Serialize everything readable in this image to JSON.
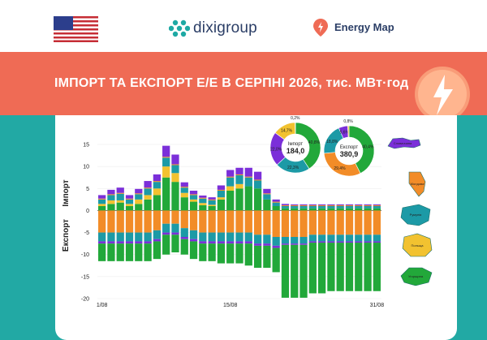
{
  "header": {
    "flag_icon": "us-flag-icon",
    "logo_text": "dixigroup",
    "map_text": "Energy Map"
  },
  "banner": {
    "title": "ІМПОРТ ТА ЕКСПОРТ Е/Е В СЕРПНІ 2026, тис. МВт·год",
    "accent": "#ef6b55"
  },
  "colors": {
    "slovakia": "#7b2fd9",
    "moldova": "#f28c28",
    "romania": "#1c9aa6",
    "poland": "#f2c230",
    "hungary": "#22a83a",
    "background": "#22a9a4"
  },
  "chart_data": {
    "type": "bar",
    "title": "ІМПОРТ ТА ЕКСПОРТ Е/Е В СЕРПНІ 2026, тис. МВт·год",
    "ylabel_top": "Імпорт",
    "ylabel_bottom": "Експорт",
    "ylim": [
      -20,
      15
    ],
    "yticks": [
      15,
      10,
      5,
      0,
      -5,
      -10,
      -15,
      -20
    ],
    "x_labels": [
      "1/08",
      "15/08",
      "31/08"
    ],
    "days": [
      1,
      2,
      3,
      4,
      5,
      6,
      7,
      8,
      9,
      10,
      11,
      12,
      13,
      14,
      15,
      16,
      17,
      18,
      19,
      20,
      21,
      22,
      23,
      24,
      25,
      26,
      27,
      28,
      29,
      30,
      31
    ],
    "series": [
      {
        "name": "Словаччина",
        "import": [
          0.8,
          1.0,
          1.2,
          0.8,
          1.0,
          1.5,
          1.5,
          2.5,
          2.2,
          1.0,
          0.8,
          0.5,
          0.5,
          1.0,
          1.5,
          1.5,
          2.0,
          1.8,
          1.0,
          0.5,
          0.3,
          0.2,
          0.2,
          0.2,
          0.2,
          0.2,
          0.2,
          0.2,
          0.2,
          0.2,
          0.2
        ],
        "export": [
          0.5,
          0.5,
          0.5,
          0.5,
          0.5,
          0.5,
          0.5,
          0.5,
          0.5,
          0.5,
          0.5,
          0.5,
          0.5,
          0.5,
          0.5,
          0.5,
          0.5,
          0.5,
          0.5,
          0.5,
          0.3,
          0.3,
          0.3,
          0.3,
          0.3,
          0.3,
          0.3,
          0.3,
          0.3,
          0.3,
          0.3
        ]
      },
      {
        "name": "Молдова",
        "import": [
          0.2,
          0.2,
          0.2,
          0.2,
          0.2,
          0.2,
          0.2,
          0.2,
          0.2,
          0.2,
          0.2,
          0.2,
          0.2,
          0.2,
          0.2,
          0.2,
          0.2,
          0.2,
          0.2,
          0.2,
          0.2,
          0.2,
          0.2,
          0.2,
          0.2,
          0.2,
          0.2,
          0.2,
          0.2,
          0.2,
          0.2
        ],
        "export": [
          5.0,
          5.0,
          5.0,
          5.0,
          5.0,
          5.0,
          4.5,
          3.0,
          3.0,
          4.0,
          4.5,
          5.0,
          5.0,
          5.0,
          5.0,
          5.0,
          5.0,
          5.5,
          5.5,
          6.0,
          6.0,
          6.0,
          6.0,
          5.5,
          5.5,
          5.5,
          5.5,
          5.5,
          5.5,
          5.5,
          5.5
        ]
      },
      {
        "name": "Румунія",
        "import": [
          1.0,
          1.2,
          1.5,
          1.0,
          1.2,
          1.5,
          1.5,
          2.0,
          1.8,
          1.2,
          1.0,
          1.0,
          1.0,
          1.5,
          2.0,
          2.0,
          2.0,
          1.8,
          1.2,
          0.8,
          0.5,
          0.5,
          0.5,
          0.5,
          0.5,
          0.5,
          0.5,
          0.5,
          0.5,
          0.5,
          0.5
        ],
        "export": [
          2.0,
          2.0,
          2.0,
          2.0,
          2.0,
          2.0,
          2.0,
          2.0,
          2.0,
          2.0,
          2.0,
          2.0,
          2.0,
          2.0,
          2.0,
          2.0,
          2.0,
          2.0,
          2.0,
          2.0,
          1.5,
          1.5,
          1.5,
          1.5,
          1.5,
          1.5,
          1.5,
          1.5,
          1.5,
          1.5,
          1.5
        ]
      },
      {
        "name": "Польща",
        "import": [
          0.5,
          0.8,
          0.5,
          0.5,
          1.0,
          1.0,
          1.5,
          2.5,
          2.0,
          1.0,
          0.5,
          0.5,
          0.3,
          0.5,
          1.0,
          1.0,
          0.0,
          0.0,
          0.0,
          0.0,
          0.0,
          0.0,
          0.0,
          0.0,
          0.0,
          0.0,
          0.0,
          0.0,
          0.0,
          0.0,
          0.0
        ],
        "export": [
          0.0,
          0.0,
          0.0,
          0.0,
          0.0,
          0.0,
          0.0,
          0.0,
          0.0,
          0.0,
          0.0,
          0.0,
          0.0,
          0.0,
          0.0,
          0.0,
          0.0,
          0.0,
          0.0,
          0.0,
          0.0,
          0.0,
          0.0,
          0.0,
          0.0,
          0.0,
          0.0,
          0.0,
          0.0,
          0.0,
          0.0
        ]
      },
      {
        "name": "Угорщина",
        "import": [
          1.0,
          1.5,
          1.8,
          1.0,
          1.5,
          2.5,
          3.5,
          7.5,
          6.5,
          3.0,
          2.0,
          1.2,
          1.0,
          2.5,
          4.5,
          5.0,
          5.5,
          5.0,
          2.5,
          1.0,
          0.5,
          0.5,
          0.5,
          0.5,
          0.5,
          0.5,
          0.5,
          0.5,
          0.5,
          0.5,
          0.5
        ],
        "export": [
          4.0,
          4.0,
          4.0,
          4.0,
          4.0,
          4.0,
          4.0,
          4.5,
          4.0,
          3.5,
          4.0,
          4.0,
          4.0,
          4.5,
          4.5,
          4.5,
          5.0,
          5.0,
          5.0,
          5.5,
          12.0,
          12.0,
          12.0,
          11.5,
          11.5,
          11.0,
          11.0,
          11.0,
          11.0,
          11.0,
          11.0
        ]
      }
    ],
    "pies": [
      {
        "label": "Імпорт",
        "total": "184,0",
        "slices": [
          {
            "series": "Угорщина",
            "value": 40.8,
            "label": "40,8%"
          },
          {
            "series": "Румунія",
            "value": 22.3,
            "label": "22,3%"
          },
          {
            "series": "Словаччина",
            "value": 22.0,
            "label": "22,0%"
          },
          {
            "series": "Польща",
            "value": 14.7,
            "label": "14,7%"
          },
          {
            "series": "Молдова",
            "value": 0.2,
            "label": "0,2%"
          }
        ]
      },
      {
        "label": "Експорт",
        "total": "380,9",
        "slices": [
          {
            "series": "Угорщина",
            "value": 40.4,
            "label": "40,4%"
          },
          {
            "series": "Молдова",
            "value": 29.4,
            "label": "29,4%"
          },
          {
            "series": "Румунія",
            "value": 18.8,
            "label": "18,8%"
          },
          {
            "series": "Словаччина",
            "value": 5.6,
            "label": "5,6%"
          },
          {
            "series": "Польща",
            "value": 0.8,
            "label": "0,8%"
          }
        ]
      }
    ]
  }
}
